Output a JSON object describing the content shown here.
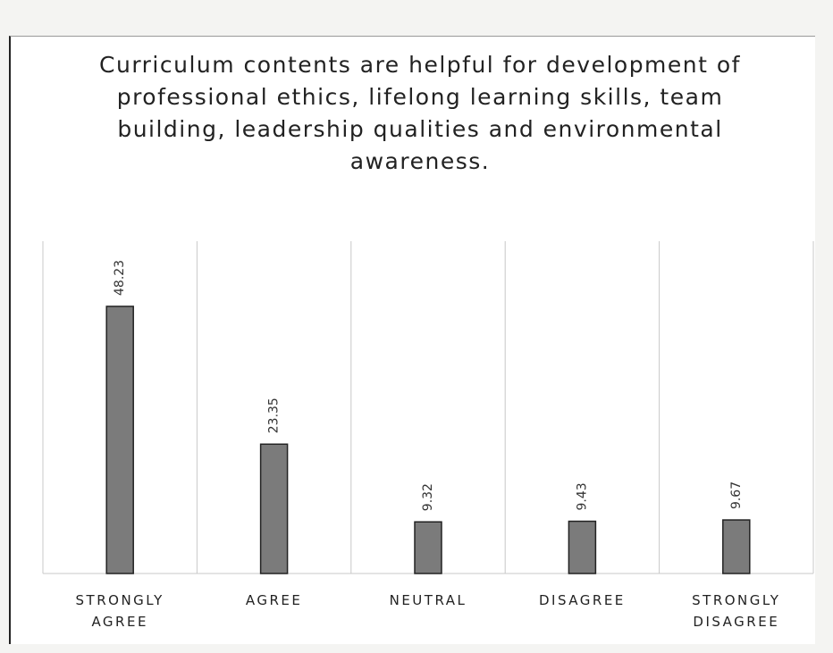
{
  "chart_data": {
    "type": "bar",
    "title": "Curriculum contents are helpful for development of professional ethics, lifelong learning skills, team building, leadership qualities and environmental awareness.",
    "categories": [
      "STRONGLY AGREE",
      "AGREE",
      "NEUTRAL",
      "DISAGREE",
      "STRONGLY DISAGREE"
    ],
    "values": [
      48.23,
      23.35,
      9.32,
      9.43,
      9.67
    ],
    "color": "#7b7b7b",
    "ylim": [
      0,
      60
    ]
  }
}
